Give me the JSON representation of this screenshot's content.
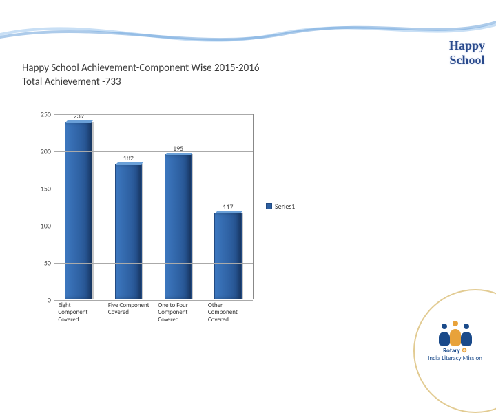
{
  "brand": {
    "line1": "Happy",
    "line2": "School",
    "color": "#2a4a8c",
    "fontsize": 18
  },
  "title": {
    "line1": "Happy School Achievement-Component Wise 2015-2016",
    "line2": "Total Achievement -733",
    "fontsize": 15,
    "color": "#3a3a3a"
  },
  "chart": {
    "type": "bar",
    "categories": [
      "Eight Component Covered",
      "Five Component Covered",
      "One to Four Component Covered",
      "Other Component Covered"
    ],
    "values": [
      239,
      182,
      195,
      117
    ],
    "bar_color": "#2d5fa0",
    "bar_border": "#224a82",
    "ylim": [
      0,
      250
    ],
    "ytick_step": 50,
    "yticks": [
      0,
      50,
      100,
      150,
      200,
      250
    ],
    "grid_color": "#aaaaaa",
    "plot_border_color": "#888888",
    "background_color": "#ffffff",
    "value_label_fontsize": 10,
    "tick_fontsize": 10,
    "xlabel_fontsize": 9,
    "bar_width": 0.62
  },
  "legend": {
    "label": "Series1",
    "swatch_color": "#2d5fa0",
    "fontsize": 10
  },
  "footer": {
    "rotary_text": "Rotary",
    "mission_text": "India Literacy Mission",
    "colors": {
      "blue": "#1a4a8a",
      "orange": "#e8a23a",
      "gold": "#cfa94a"
    }
  },
  "wave": {
    "color1": "#6aa0d8",
    "color2": "#c8dff5"
  }
}
